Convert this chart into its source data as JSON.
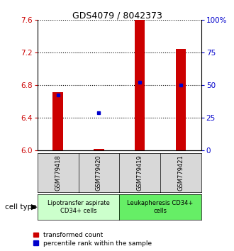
{
  "title": "GDS4079 / 8042373",
  "samples": [
    "GSM779418",
    "GSM779420",
    "GSM779419",
    "GSM779421"
  ],
  "red_values": [
    6.72,
    6.02,
    7.6,
    7.25
  ],
  "blue_values": [
    6.68,
    6.46,
    6.84,
    6.8
  ],
  "ylim_left": [
    6.0,
    7.6
  ],
  "ylim_right": [
    0,
    100
  ],
  "yticks_left": [
    6.0,
    6.4,
    6.8,
    7.2,
    7.6
  ],
  "yticks_right": [
    0,
    25,
    50,
    75,
    100
  ],
  "yticklabels_right": [
    "0",
    "25",
    "50",
    "75",
    "100%"
  ],
  "red_color": "#cc0000",
  "blue_color": "#0000cc",
  "bar_width": 0.25,
  "group0_color": "#ccffcc",
  "group1_color": "#66ee66",
  "group0_label": "Lipotransfer aspirate\nCD34+ cells",
  "group1_label": "Leukapheresis CD34+\ncells",
  "cell_type_label": "cell type",
  "legend_red": "transformed count",
  "legend_blue": "percentile rank within the sample",
  "sample_box_color": "#d8d8d8",
  "plot_bg": "#ffffff",
  "title_fontsize": 9,
  "tick_fontsize": 7.5,
  "sample_fontsize": 6,
  "group_fontsize": 6,
  "legend_fontsize": 6.5
}
